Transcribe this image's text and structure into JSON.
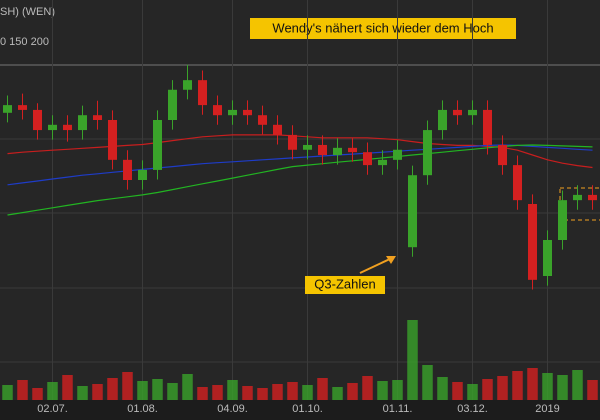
{
  "chart_data": {
    "type": "candlestick",
    "title": "Wendy's nähert sich wieder dem Hoch",
    "symbol": "SH) (WEN)",
    "ma_legend": "0 150 200",
    "annotation": "Q3-Zahlen",
    "categories": [
      null,
      null,
      null,
      "02.07.",
      null,
      null,
      null,
      null,
      null,
      "01.08.",
      null,
      null,
      null,
      null,
      null,
      "04.09.",
      null,
      null,
      null,
      null,
      "01.10.",
      null,
      null,
      null,
      null,
      null,
      "01.11.",
      null,
      null,
      null,
      null,
      "03.12.",
      null,
      null,
      null,
      null,
      "2019",
      null,
      null,
      null
    ],
    "open": [
      18.9,
      19.06,
      18.96,
      18.54,
      18.65,
      18.54,
      18.85,
      18.75,
      17.92,
      17.5,
      17.71,
      18.75,
      19.38,
      19.58,
      19.06,
      18.85,
      18.96,
      18.85,
      18.65,
      18.44,
      18.13,
      18.23,
      18.02,
      18.17,
      18.08,
      17.81,
      17.92,
      16.1,
      17.6,
      18.54,
      18.96,
      18.85,
      18.96,
      18.23,
      17.81,
      17.0,
      15.5,
      16.25,
      17.08,
      17.19
    ],
    "high": [
      19.26,
      19.3,
      19.1,
      18.85,
      18.85,
      19.05,
      19.15,
      18.95,
      18.12,
      17.91,
      18.95,
      19.58,
      19.9,
      19.78,
      19.26,
      19.16,
      19.16,
      19.05,
      18.85,
      18.64,
      18.43,
      18.43,
      18.37,
      18.37,
      18.28,
      18.12,
      18.33,
      17.8,
      18.74,
      19.16,
      19.16,
      19.16,
      19.16,
      18.43,
      18.01,
      17.2,
      16.45,
      17.28,
      17.39,
      17.39
    ],
    "low": [
      18.7,
      18.76,
      18.34,
      18.34,
      18.3,
      18.34,
      18.55,
      17.72,
      17.3,
      17.3,
      17.51,
      18.55,
      19.18,
      18.86,
      18.65,
      18.65,
      18.65,
      18.45,
      18.24,
      17.93,
      17.93,
      17.82,
      17.82,
      17.88,
      17.61,
      17.61,
      17.72,
      15.9,
      17.4,
      18.34,
      18.65,
      18.65,
      18.03,
      17.61,
      16.88,
      15.22,
      15.3,
      16.05,
      16.88,
      16.88
    ],
    "close": [
      19.06,
      18.96,
      18.54,
      18.65,
      18.54,
      18.85,
      18.75,
      17.92,
      17.5,
      17.71,
      18.75,
      19.38,
      19.58,
      19.06,
      18.85,
      18.96,
      18.85,
      18.65,
      18.44,
      18.13,
      18.23,
      18.02,
      18.17,
      18.08,
      17.81,
      17.92,
      18.13,
      17.6,
      18.54,
      18.96,
      18.85,
      18.96,
      18.23,
      17.81,
      17.08,
      15.42,
      16.25,
      17.08,
      17.19,
      17.08
    ],
    "up_color": "#3aa32a",
    "down_color": "#d42020",
    "series": [
      {
        "color": "#c81e1e",
        "values": [
          18.05,
          18.08,
          18.1,
          18.12,
          18.14,
          18.16,
          18.18,
          18.2,
          18.22,
          18.24,
          18.28,
          18.32,
          18.36,
          18.4,
          18.42,
          18.44,
          18.44,
          18.44,
          18.44,
          18.42,
          18.4,
          18.38,
          18.38,
          18.38,
          18.38,
          18.36,
          18.34,
          18.3,
          18.26,
          18.24,
          18.22,
          18.22,
          18.2,
          18.18,
          18.12,
          18.02,
          17.92,
          17.85,
          17.8,
          17.76
        ]
      },
      {
        "color": "#1e3cc8",
        "values": [
          17.4,
          17.44,
          17.48,
          17.52,
          17.56,
          17.6,
          17.63,
          17.66,
          17.69,
          17.72,
          17.75,
          17.78,
          17.81,
          17.84,
          17.86,
          17.88,
          17.9,
          17.92,
          17.94,
          17.96,
          17.98,
          18.0,
          18.02,
          18.04,
          18.06,
          18.08,
          18.1,
          18.12,
          18.14,
          18.16,
          18.18,
          18.2,
          18.22,
          18.23,
          18.22,
          18.2,
          18.18,
          18.16,
          18.14,
          18.12
        ]
      },
      {
        "color": "#22b422",
        "values": [
          16.77,
          16.82,
          16.87,
          16.92,
          16.97,
          17.02,
          17.07,
          17.11,
          17.15,
          17.19,
          17.24,
          17.3,
          17.36,
          17.42,
          17.48,
          17.54,
          17.6,
          17.66,
          17.72,
          17.78,
          17.81,
          17.84,
          17.87,
          17.9,
          17.93,
          17.96,
          17.99,
          18.02,
          18.05,
          18.08,
          18.11,
          18.14,
          18.17,
          18.2,
          18.22,
          18.23,
          18.22,
          18.21,
          18.2,
          18.19
        ]
      }
    ],
    "volume": [
      1.5,
      2.0,
      1.2,
      1.8,
      2.5,
      1.4,
      1.6,
      2.2,
      2.8,
      1.9,
      2.1,
      1.7,
      2.6,
      1.3,
      1.5,
      2.0,
      1.4,
      1.2,
      1.6,
      1.8,
      1.5,
      2.2,
      1.3,
      1.7,
      2.4,
      1.9,
      2.0,
      8.0,
      3.5,
      2.3,
      1.8,
      1.6,
      2.1,
      2.4,
      2.9,
      3.2,
      2.7,
      2.5,
      3.0,
      2.0
    ],
    "ylim": [
      15,
      20
    ],
    "volume_lim": [
      0,
      10
    ]
  }
}
